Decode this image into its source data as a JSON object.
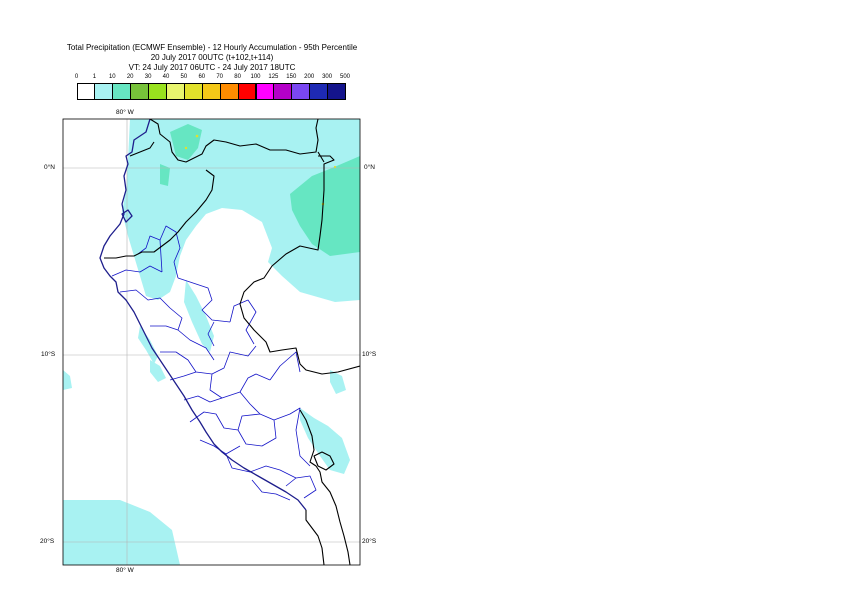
{
  "header": {
    "line1": "Total Precipitation (ECMWF Ensemble) - 12 Hourly Accumulation - 95th Percentile",
    "line2": "20 July 2017 00UTC (t+102,t+114)",
    "line3": "VT: 24 July 2017 06UTC - 24 July 2017 18UTC"
  },
  "legend": {
    "ticks": [
      "0",
      "1",
      "10",
      "20",
      "30",
      "40",
      "50",
      "60",
      "70",
      "80",
      "100",
      "125",
      "150",
      "200",
      "300",
      "500"
    ],
    "colors": [
      "#ffffff",
      "#a8f2f2",
      "#66e6c2",
      "#77c23a",
      "#99e21e",
      "#e8f56e",
      "#e1e12b",
      "#f4c818",
      "#ff8c00",
      "#ff0000",
      "#ff00ff",
      "#b400c8",
      "#7a47f2",
      "#1e2ab4",
      "#14148c"
    ]
  },
  "axes": {
    "top_lon": "80° W",
    "bottom_lon": "80° W",
    "lat_left": [
      "0°N",
      "10°S",
      "20°S"
    ],
    "lat_right": [
      "0°N",
      "10°S",
      "20°S"
    ]
  },
  "colors": {
    "light_precip": "#a8f2f2",
    "medium_precip": "#66e6c2",
    "coast_line": "#1e1e8c",
    "border_line": "#000000",
    "region_line": "#1414c8",
    "grid_line": "#b4b4b4"
  }
}
